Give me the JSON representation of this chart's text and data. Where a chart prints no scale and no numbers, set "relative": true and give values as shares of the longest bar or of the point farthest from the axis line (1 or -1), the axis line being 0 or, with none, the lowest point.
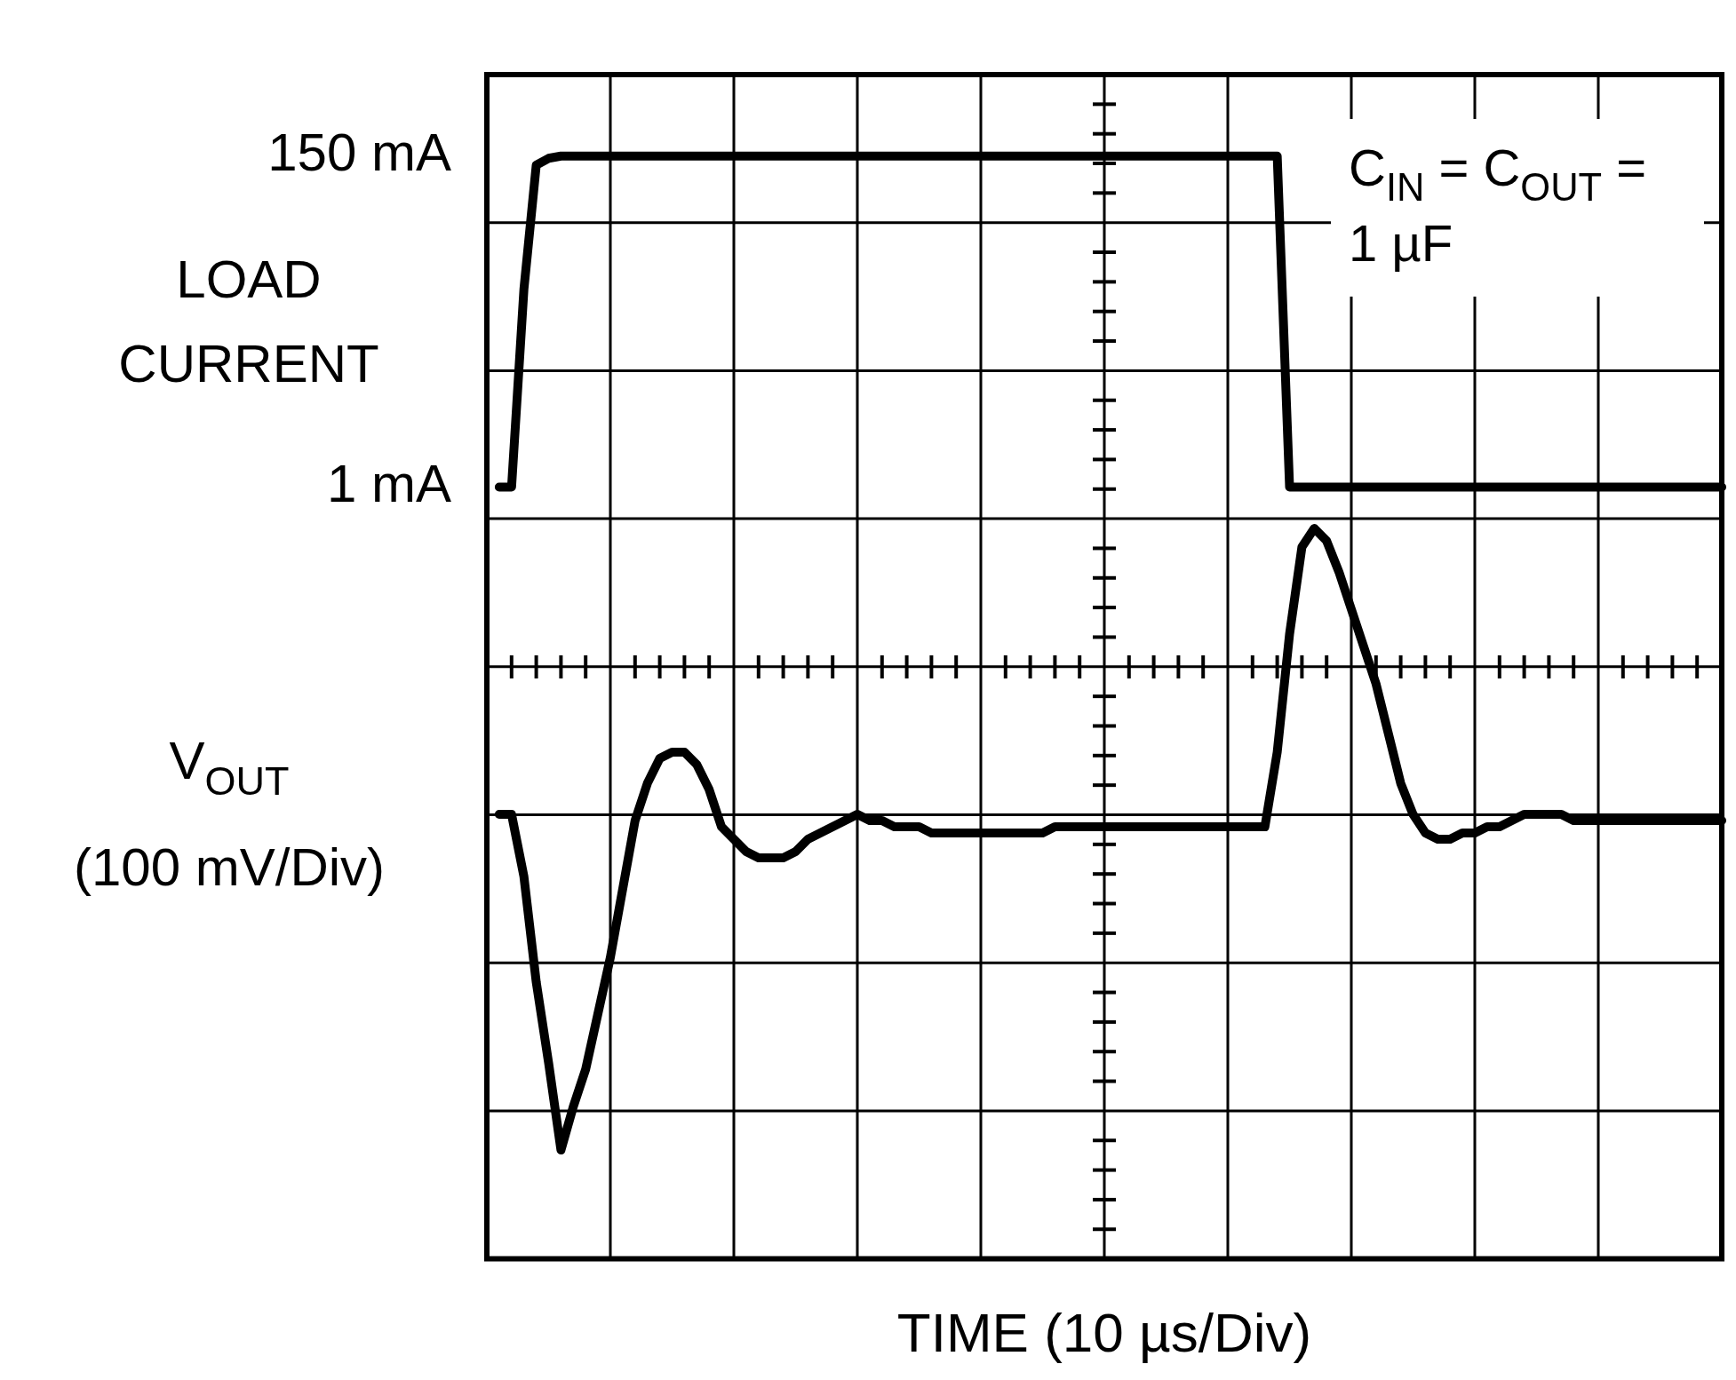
{
  "chart_data": [
    {
      "type": "line",
      "xlabel": "TIME (10 µs/Div)",
      "ylabel": "LOAD CURRENT",
      "annotations": [
        "C$_{IN}$ = C$_{OUT}$ = 1 µF"
      ],
      "categories": [
        null,
        null,
        null,
        null,
        null,
        null,
        null,
        null,
        null,
        null,
        null,
        null,
        null,
        null,
        null,
        null,
        null,
        null,
        null,
        null,
        null,
        null,
        null,
        null,
        null,
        null,
        null,
        null,
        null,
        null,
        null,
        null,
        null,
        null,
        null,
        null,
        null,
        null,
        null,
        null,
        null,
        null,
        null,
        null,
        null,
        null,
        null,
        null,
        null,
        null,
        null,
        null,
        null,
        null,
        null,
        null,
        null,
        null,
        null,
        null,
        null,
        null,
        null,
        null,
        null,
        null,
        null,
        null,
        null,
        null,
        null,
        null,
        null,
        null,
        null,
        null,
        null,
        null,
        null,
        null,
        null,
        null,
        null,
        null,
        null,
        null,
        null,
        null,
        null,
        null,
        null,
        null,
        null,
        null,
        null,
        null,
        null,
        null,
        null,
        null,
        null
      ],
      "ylim": [
        -346.5,
        186.7
      ],
      "yticks": [
        {
          "value": 1,
          "label": "1 mA"
        },
        {
          "value": 150,
          "label": "150 mA"
        }
      ],
      "tick_labels": "y",
      "grid": true,
      "legend": false,
      "marker": "none",
      "line_style": "solid",
      "series": [
        {
          "color": "#000000",
          "values": [
            null,
            1,
            1,
            90,
            146,
            149,
            150,
            150,
            150,
            150,
            150,
            150,
            150,
            150,
            150,
            150,
            150,
            150,
            150,
            150,
            150,
            150,
            150,
            150,
            150,
            150,
            150,
            150,
            150,
            150,
            150,
            150,
            150,
            150,
            150,
            150,
            150,
            150,
            150,
            150,
            150,
            150,
            150,
            150,
            150,
            150,
            150,
            150,
            150,
            150,
            150,
            150,
            150,
            150,
            150,
            150,
            150,
            150,
            150,
            150,
            150,
            150,
            150,
            150,
            150,
            1,
            1,
            1,
            1,
            1,
            1,
            1,
            1,
            1,
            1,
            1,
            1,
            1,
            1,
            1,
            1,
            1,
            1,
            1,
            1,
            1,
            1,
            1,
            1,
            1,
            1,
            1,
            1,
            1,
            1,
            1,
            1,
            1,
            1,
            1,
            1
          ]
        }
      ]
    },
    {
      "type": "line",
      "relative": true,
      "ylabel": "V$_{OUT}$ (100 mV/Div)",
      "categories": [
        null,
        null,
        null,
        null,
        null,
        null,
        null,
        null,
        null,
        null,
        null,
        null,
        null,
        null,
        null,
        null,
        null,
        null,
        null,
        null,
        null,
        null,
        null,
        null,
        null,
        null,
        null,
        null,
        null,
        null,
        null,
        null,
        null,
        null,
        null,
        null,
        null,
        null,
        null,
        null,
        null,
        null,
        null,
        null,
        null,
        null,
        null,
        null,
        null,
        null,
        null,
        null,
        null,
        null,
        null,
        null,
        null,
        null,
        null,
        null,
        null,
        null,
        null,
        null,
        null,
        null,
        null,
        null,
        null,
        null,
        null,
        null,
        null,
        null,
        null,
        null,
        null,
        null,
        null,
        null,
        null,
        null,
        null,
        null,
        null,
        null,
        null,
        null,
        null,
        null,
        null,
        null,
        null,
        null,
        null,
        null,
        null,
        null,
        null,
        null,
        null
      ],
      "legend": false,
      "marker": "none",
      "line_style": "solid",
      "series": [
        {
          "color": "#000000",
          "values": [
            null,
            0.54,
            0.54,
            0.44,
            0.27,
            0.14,
            0,
            0.07,
            0.13,
            0.22,
            0.31,
            0.42,
            0.53,
            0.59,
            0.63,
            0.64,
            0.64,
            0.62,
            0.58,
            0.52,
            0.5,
            0.48,
            0.47,
            0.47,
            0.47,
            0.48,
            0.5,
            0.51,
            0.52,
            0.53,
            0.54,
            0.53,
            0.53,
            0.52,
            0.52,
            0.52,
            0.51,
            0.51,
            0.51,
            0.51,
            0.51,
            0.51,
            0.51,
            0.51,
            0.51,
            0.51,
            0.52,
            0.52,
            0.52,
            0.52,
            0.52,
            0.52,
            0.52,
            0.52,
            0.52,
            0.52,
            0.52,
            0.52,
            0.52,
            0.52,
            0.52,
            0.52,
            0.52,
            0.52,
            0.64,
            0.83,
            0.97,
            1,
            0.98,
            0.93,
            0.87,
            0.81,
            0.75,
            0.67,
            0.59,
            0.54,
            0.51,
            0.5,
            0.5,
            0.51,
            0.51,
            0.52,
            0.52,
            0.53,
            0.54,
            0.54,
            0.54,
            0.54,
            0.53,
            0.53,
            0.53,
            0.53,
            0.53,
            0.53,
            0.53,
            0.53,
            0.53,
            0.53,
            0.53,
            0.53,
            0.53
          ]
        }
      ]
    }
  ]
}
